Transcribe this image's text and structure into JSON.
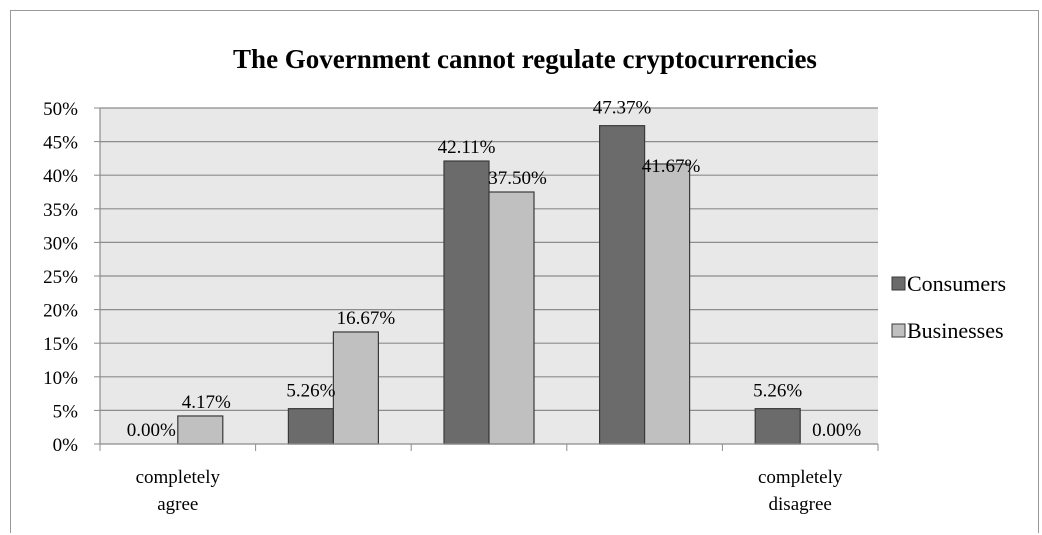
{
  "chart_data": {
    "type": "bar",
    "title": "The Government cannot regulate cryptocurrencies",
    "categories": [
      "completely\nagree",
      "",
      "",
      "",
      "completely\ndisagree"
    ],
    "series": [
      {
        "name": "Consumers",
        "values": [
          0.0,
          5.26,
          42.11,
          47.37,
          5.26
        ],
        "labels": [
          "0.00%",
          "5.26%",
          "42.11%",
          "47.37%",
          "5.26%"
        ],
        "color": "#6b6b6b"
      },
      {
        "name": "Businesses",
        "values": [
          4.17,
          16.67,
          37.5,
          41.67,
          0.0
        ],
        "labels": [
          "4.17%",
          "16.67%",
          "37.50%",
          "41.67%",
          "0.00%"
        ],
        "color": "#c0c0c0"
      }
    ],
    "ylim": [
      0,
      50
    ],
    "yticks": [
      "0%",
      "5%",
      "10%",
      "15%",
      "20%",
      "25%",
      "30%",
      "35%",
      "40%",
      "45%",
      "50%"
    ],
    "grid": true,
    "legend_position": "right",
    "plot_background": "#e8e8e8"
  }
}
